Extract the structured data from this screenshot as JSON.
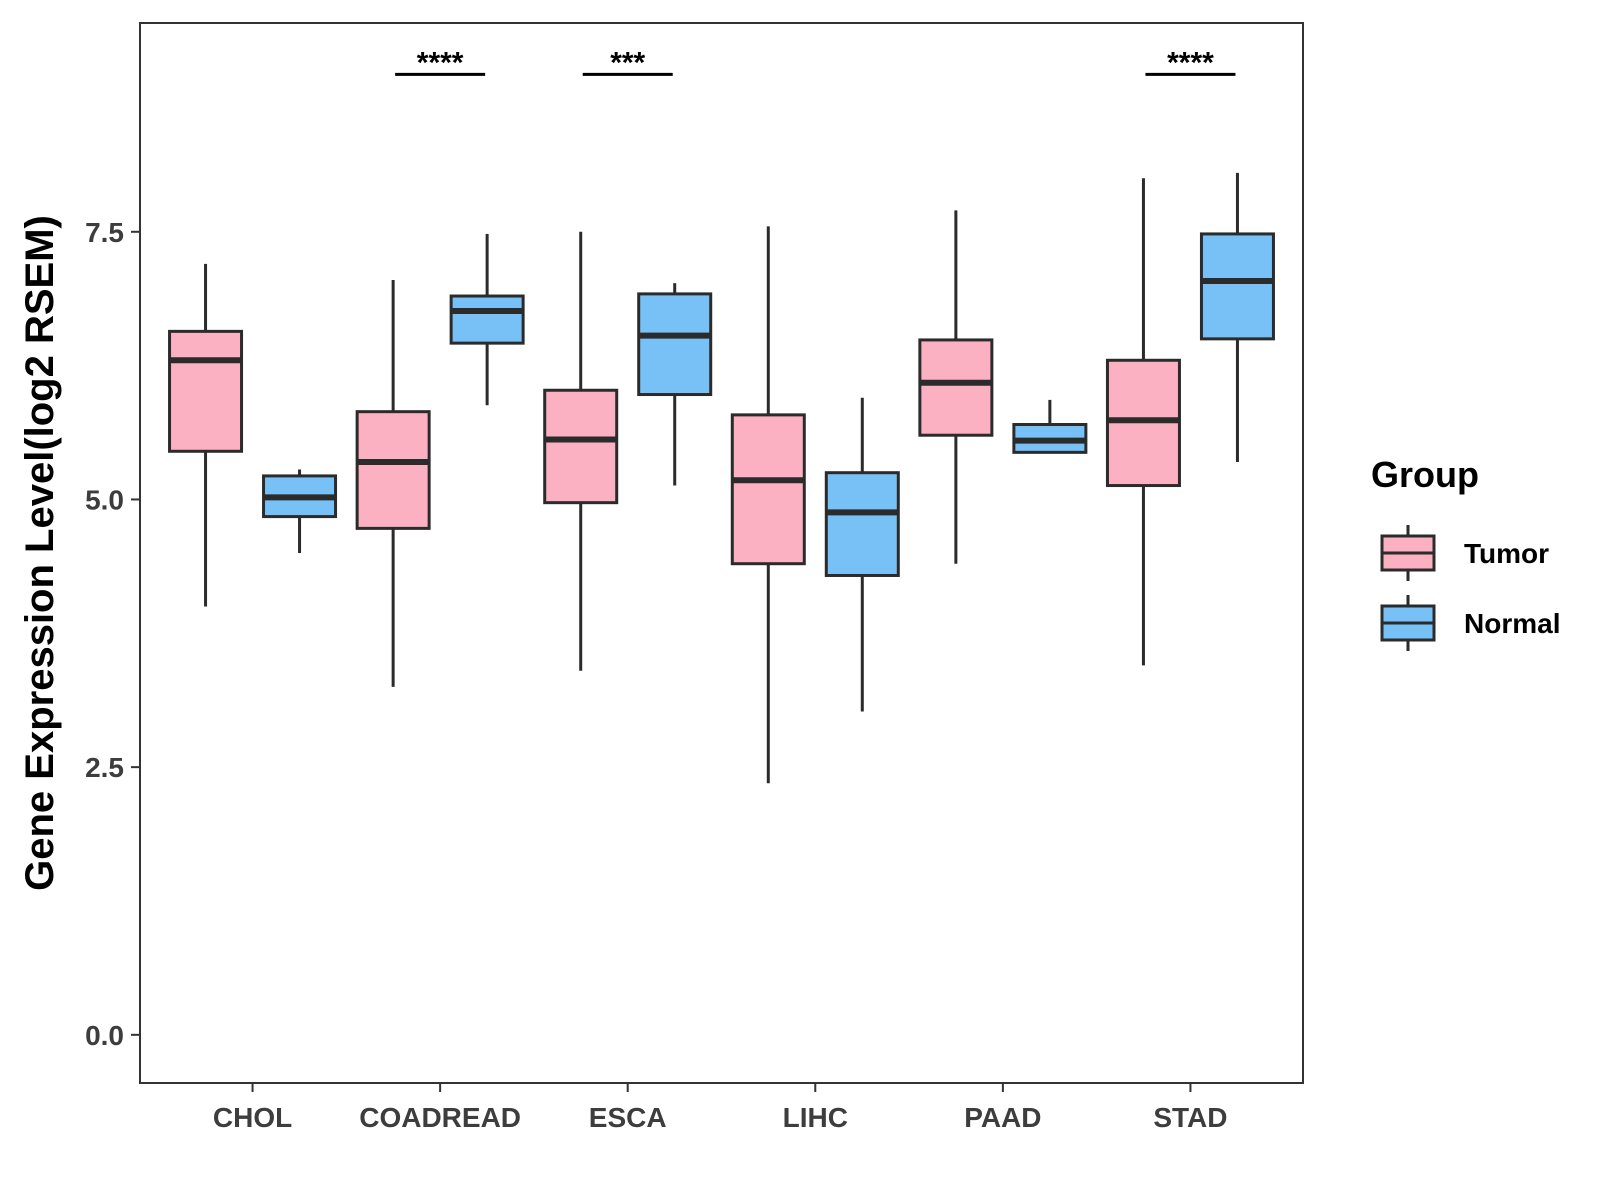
{
  "chart_data": {
    "type": "boxplot",
    "title": "",
    "xlabel": "",
    "ylabel": "Gene Expression Level(log2 RSEM)",
    "ylim": [
      -0.45,
      9.45
    ],
    "yticks": [
      0.0,
      2.5,
      5.0,
      7.5
    ],
    "ytick_labels": [
      "0.0",
      "2.5",
      "5.0",
      "7.5"
    ],
    "categories": [
      "CHOL",
      "COADREAD",
      "ESCA",
      "LIHC",
      "PAAD",
      "STAD"
    ],
    "series": [
      {
        "name": "Tumor",
        "color": "#FBB1C2",
        "boxes": [
          {
            "min": 4.0,
            "q1": 5.45,
            "median": 6.3,
            "q3": 6.57,
            "max": 7.2
          },
          {
            "min": 3.25,
            "q1": 4.73,
            "median": 5.35,
            "q3": 5.82,
            "max": 7.05
          },
          {
            "min": 3.4,
            "q1": 4.97,
            "median": 5.56,
            "q3": 6.02,
            "max": 7.5
          },
          {
            "min": 2.35,
            "q1": 4.4,
            "median": 5.18,
            "q3": 5.79,
            "max": 7.55
          },
          {
            "min": 4.4,
            "q1": 5.6,
            "median": 6.09,
            "q3": 6.49,
            "max": 7.7
          },
          {
            "min": 3.45,
            "q1": 5.13,
            "median": 5.74,
            "q3": 6.3,
            "max": 8.0
          }
        ]
      },
      {
        "name": "Normal",
        "color": "#77C1F7",
        "boxes": [
          {
            "min": 4.5,
            "q1": 4.84,
            "median": 5.02,
            "q3": 5.22,
            "max": 5.28
          },
          {
            "min": 5.88,
            "q1": 6.46,
            "median": 6.76,
            "q3": 6.9,
            "max": 7.48
          },
          {
            "min": 5.13,
            "q1": 5.98,
            "median": 6.53,
            "q3": 6.92,
            "max": 7.02
          },
          {
            "min": 3.02,
            "q1": 4.29,
            "median": 4.88,
            "q3": 5.25,
            "max": 5.95
          },
          {
            "min": 5.44,
            "q1": 5.44,
            "median": 5.55,
            "q3": 5.7,
            "max": 5.93
          },
          {
            "min": 5.35,
            "q1": 6.5,
            "median": 7.04,
            "q3": 7.48,
            "max": 8.05
          }
        ]
      }
    ],
    "significance": [
      {
        "category": "COADREAD",
        "label": "****"
      },
      {
        "category": "ESCA",
        "label": "***"
      },
      {
        "category": "STAD",
        "label": "****"
      }
    ],
    "significance_level": 8.97,
    "legend": {
      "title": "Group",
      "entries": [
        "Tumor",
        "Normal"
      ],
      "position": "right"
    },
    "grid": false
  }
}
